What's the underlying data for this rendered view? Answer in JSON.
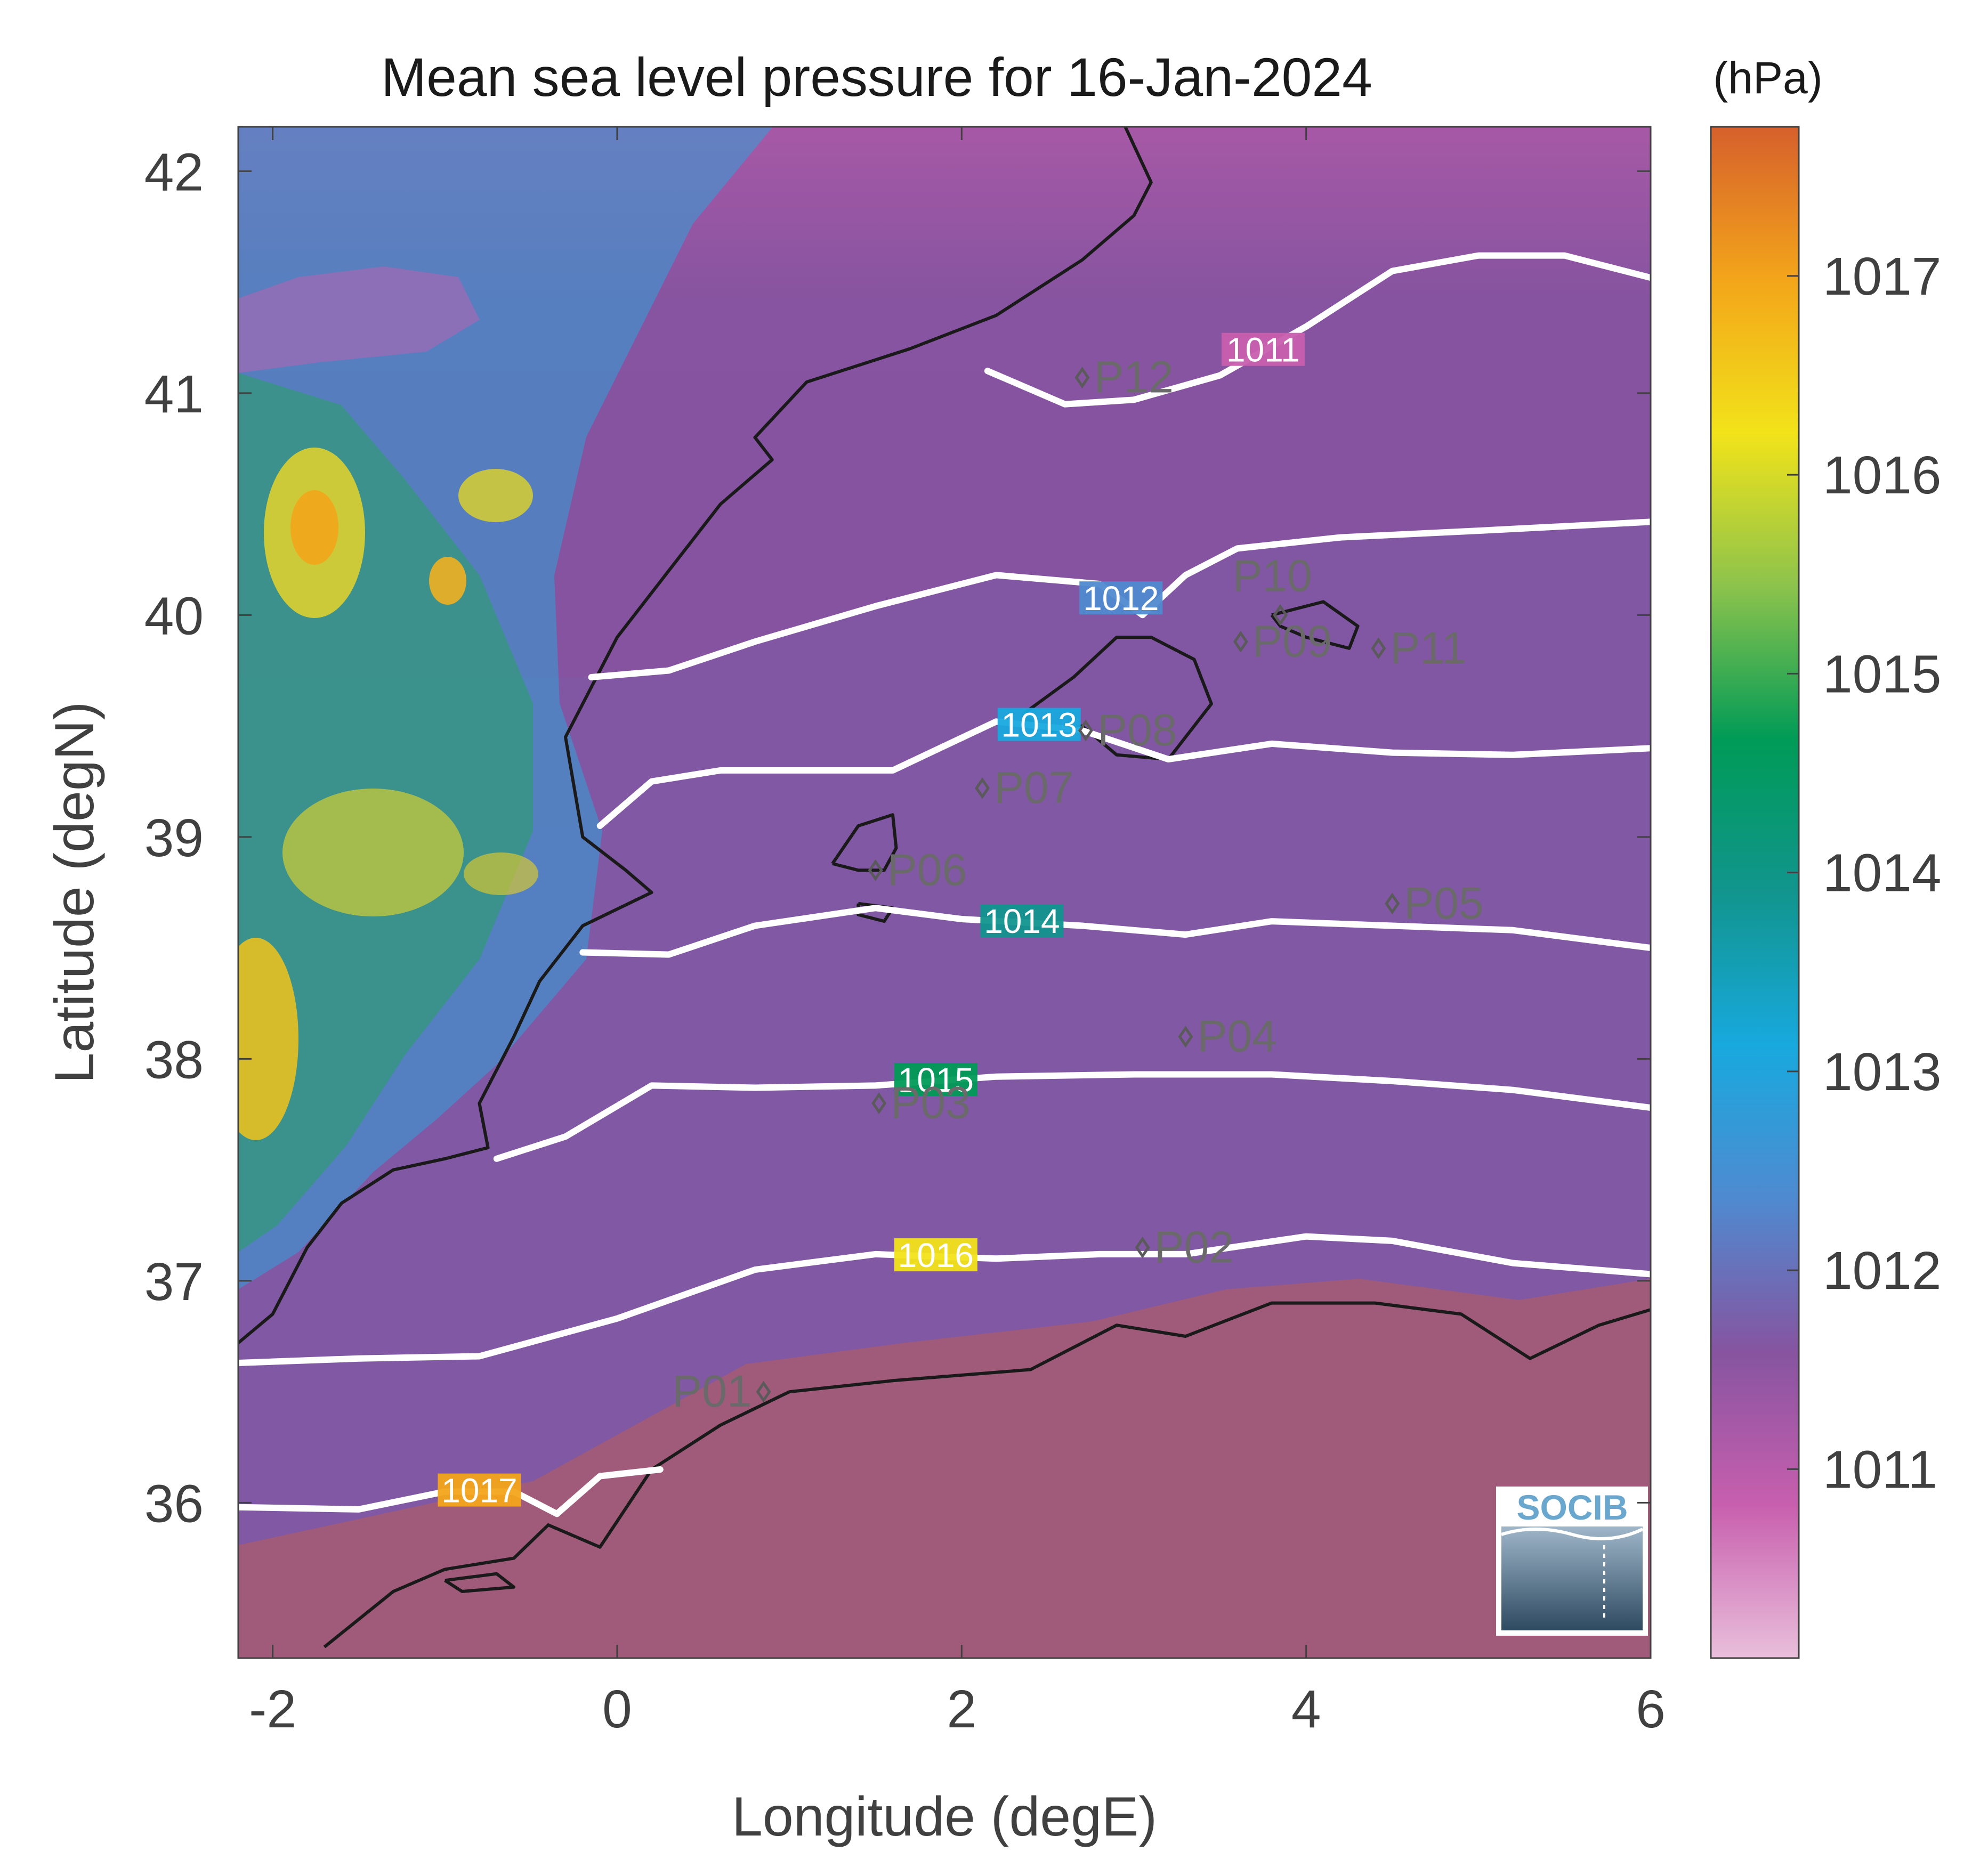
{
  "title": "Mean sea level pressure for 16-Jan-2024",
  "colorbar": {
    "unit": "(hPa)",
    "ticks": [
      "1011",
      "1012",
      "1013",
      "1014",
      "1015",
      "1016",
      "1017"
    ],
    "colors": [
      "#e9bfdb",
      "#c85fae",
      "#8654a0",
      "#4f8ad0",
      "#18a9de",
      "#11958e",
      "#009b57",
      "#8cc34c",
      "#f2e31a",
      "#f3a51a",
      "#d6602c"
    ]
  },
  "axes": {
    "xlabel": "Longitude (degE)",
    "ylabel": "Latitude (degN)",
    "xlim": [
      -2.2,
      6.0
    ],
    "ylim": [
      35.3,
      42.2
    ],
    "xticks": [
      "-2",
      "0",
      "2",
      "4",
      "6"
    ],
    "yticks": [
      "36",
      "37",
      "38",
      "39",
      "40",
      "41",
      "42"
    ]
  },
  "contours": [
    {
      "level": "1011",
      "lon": [
        2.15,
        2.3,
        2.6,
        3.0,
        3.5,
        4.0,
        4.5,
        5.0,
        5.5,
        6.0
      ],
      "lat": [
        41.1,
        41.05,
        40.95,
        40.97,
        41.08,
        41.3,
        41.55,
        41.62,
        41.62,
        41.52
      ]
    },
    {
      "level": "1012",
      "lon": [
        -0.15,
        0.3,
        0.8,
        1.5,
        2.2,
        2.8,
        3.05,
        3.3,
        3.6,
        4.2,
        5.0,
        6.0
      ],
      "lat": [
        39.72,
        39.75,
        39.88,
        40.04,
        40.18,
        40.14,
        40.0,
        40.18,
        40.3,
        40.35,
        40.38,
        40.42
      ]
    },
    {
      "level": "1013",
      "lon": [
        -0.1,
        0.2,
        0.6,
        1.0,
        1.6,
        2.2,
        2.7,
        3.2,
        3.8,
        4.5,
        5.2,
        6.0
      ],
      "lat": [
        39.05,
        39.25,
        39.3,
        39.3,
        39.3,
        39.52,
        39.48,
        39.35,
        39.42,
        39.38,
        39.37,
        39.4
      ]
    },
    {
      "level": "1014",
      "lon": [
        -0.2,
        0.3,
        0.8,
        1.5,
        2.0,
        2.7,
        3.3,
        3.8,
        4.5,
        5.2,
        6.0
      ],
      "lat": [
        38.48,
        38.47,
        38.6,
        38.68,
        38.63,
        38.6,
        38.56,
        38.62,
        38.6,
        38.58,
        38.5
      ]
    },
    {
      "level": "1015",
      "lon": [
        -0.7,
        -0.3,
        0.2,
        0.8,
        1.5,
        2.2,
        3.0,
        3.8,
        4.5,
        5.2,
        6.0
      ],
      "lat": [
        37.55,
        37.65,
        37.88,
        37.87,
        37.88,
        37.92,
        37.93,
        37.93,
        37.9,
        37.86,
        37.78
      ]
    },
    {
      "level": "1016",
      "lon": [
        -2.2,
        -1.5,
        -0.8,
        0.0,
        0.8,
        1.5,
        2.2,
        2.8,
        3.3,
        4.0,
        4.5,
        5.2,
        6.0
      ],
      "lat": [
        36.63,
        36.65,
        36.66,
        36.83,
        37.05,
        37.12,
        37.1,
        37.12,
        37.12,
        37.2,
        37.18,
        37.08,
        37.03
      ]
    },
    {
      "level": "1017",
      "lon": [
        -2.2,
        -1.5,
        -1.0,
        -0.6,
        -0.35,
        -0.1,
        0.25
      ],
      "lat": [
        35.98,
        35.97,
        36.05,
        36.05,
        35.95,
        36.12,
        36.15
      ]
    }
  ],
  "stations": [
    {
      "id": "P01",
      "lon": 0.85,
      "lat": 36.5
    },
    {
      "id": "P02",
      "lon": 3.05,
      "lat": 37.15
    },
    {
      "id": "P03",
      "lon": 1.52,
      "lat": 37.8
    },
    {
      "id": "P04",
      "lon": 3.3,
      "lat": 38.1
    },
    {
      "id": "P05",
      "lon": 4.5,
      "lat": 38.7
    },
    {
      "id": "P06",
      "lon": 1.5,
      "lat": 38.85
    },
    {
      "id": "P07",
      "lon": 2.12,
      "lat": 39.22
    },
    {
      "id": "P08",
      "lon": 2.72,
      "lat": 39.48
    },
    {
      "id": "P09",
      "lon": 3.62,
      "lat": 39.88
    },
    {
      "id": "P10",
      "lon": 3.85,
      "lat": 40.0
    },
    {
      "id": "P11",
      "lon": 4.42,
      "lat": 39.85
    },
    {
      "id": "P12",
      "lon": 2.7,
      "lat": 41.07
    }
  ],
  "coastline_color": "#1a1a1a",
  "contour_color": "#ffffff",
  "logo_text": "SOCIB"
}
